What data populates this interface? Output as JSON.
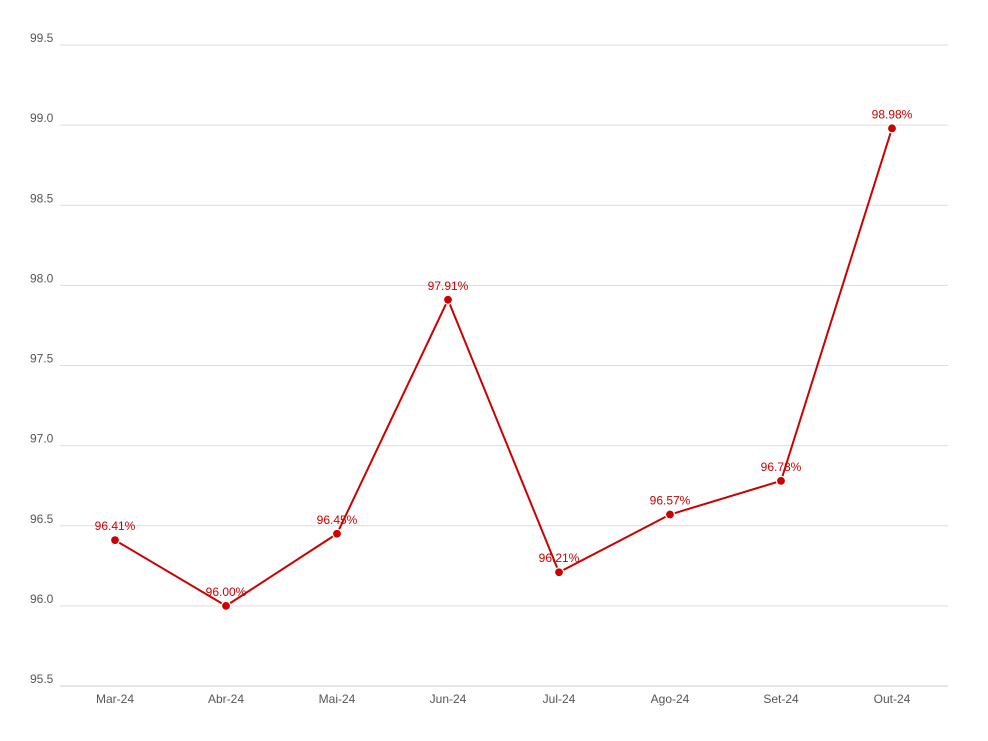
{
  "chart_data": {
    "type": "line",
    "categories": [
      "Mar-24",
      "Abr-24",
      "Mai-24",
      "Jun-24",
      "Jul-24",
      "Ago-24",
      "Set-24",
      "Out-24"
    ],
    "series": [
      {
        "values": [
          96.41,
          96.0,
          96.45,
          97.91,
          96.21,
          96.57,
          96.78,
          98.98
        ],
        "data_labels": [
          "96.41%",
          "96.00%",
          "96.45%",
          "97.91%",
          "96.21%",
          "96.57%",
          "96.78%",
          "98.98%"
        ],
        "color": "#cc0000"
      }
    ],
    "ylim": [
      95.5,
      99.5
    ],
    "yticks": [
      95.5,
      96.0,
      96.5,
      97.0,
      97.5,
      98.0,
      98.5,
      99.0,
      99.5
    ],
    "ytick_labels": [
      "95.5",
      "96.0",
      "96.5",
      "97.0",
      "97.5",
      "98.0",
      "98.5",
      "99.0",
      "99.5"
    ],
    "grid": true,
    "legend": "none"
  }
}
